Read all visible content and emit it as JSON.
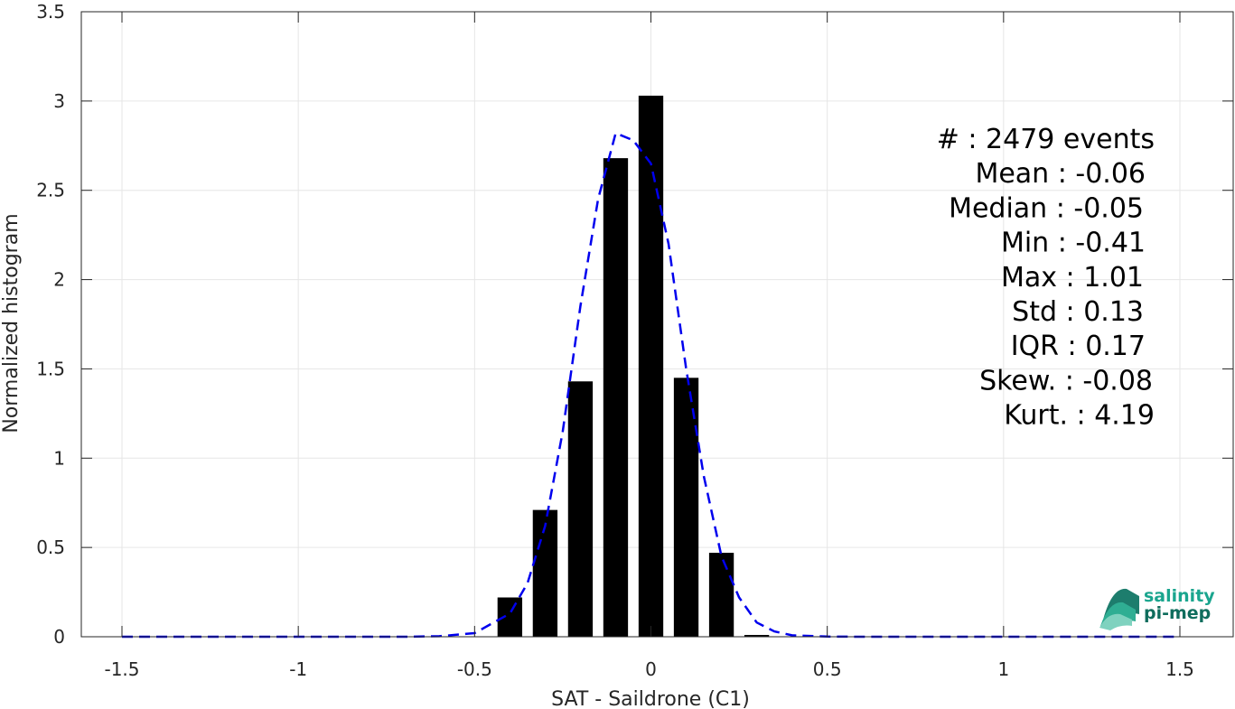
{
  "chart_data": {
    "type": "bar",
    "xlabel": "SAT - Saildrone (C1)",
    "ylabel": "Normalized histogram",
    "xlim": [
      -1.5,
      1.5
    ],
    "ylim": [
      0,
      3.5
    ],
    "xticks": [
      -1.5,
      -1,
      -0.5,
      0,
      0.5,
      1,
      1.5
    ],
    "xtick_labels": [
      "-1.5",
      "-1",
      "-0.5",
      "0",
      "0.5",
      "1",
      "1.5"
    ],
    "yticks": [
      0,
      0.5,
      1,
      1.5,
      2,
      2.5,
      3,
      3.5
    ],
    "ytick_labels": [
      "0",
      "0.5",
      "1",
      "1.5",
      "2",
      "2.5",
      "3",
      "3.5"
    ],
    "grid": true,
    "bar_color": "#000000",
    "bars": {
      "centers": [
        -0.4,
        -0.3,
        -0.2,
        -0.1,
        0.0,
        0.1,
        0.2,
        0.3
      ],
      "values": [
        0.22,
        0.71,
        1.43,
        2.68,
        3.03,
        1.45,
        0.47,
        0.01
      ]
    },
    "fit_line": {
      "style": "dashed",
      "color": "#0000ee",
      "x": [
        -1.5,
        -1.4,
        -1.3,
        -1.2,
        -1.1,
        -1.0,
        -0.9,
        -0.8,
        -0.7,
        -0.6,
        -0.5,
        -0.4,
        -0.35,
        -0.3,
        -0.25,
        -0.2,
        -0.15,
        -0.1,
        -0.05,
        0.0,
        0.05,
        0.1,
        0.15,
        0.2,
        0.25,
        0.3,
        0.35,
        0.4,
        0.5,
        0.6,
        0.7,
        0.8,
        0.9,
        1.0,
        1.1,
        1.2,
        1.3,
        1.4,
        1.5
      ],
      "y": [
        0,
        0,
        0,
        0,
        0,
        0,
        0,
        0,
        0,
        0.003,
        0.02,
        0.13,
        0.3,
        0.62,
        1.15,
        1.85,
        2.45,
        2.82,
        2.78,
        2.65,
        2.2,
        1.5,
        0.9,
        0.45,
        0.22,
        0.08,
        0.03,
        0.008,
        0.001,
        0,
        0,
        0,
        0,
        0,
        0,
        0,
        0,
        0,
        0
      ]
    },
    "stats": [
      "#  : 2479 events",
      "Mean : -0.06",
      "Median : -0.05",
      "Min : -0.41",
      "Max : 1.01",
      "Std : 0.13",
      "IQR : 0.17",
      "Skew. : -0.08",
      "Kurt. : 4.19"
    ]
  },
  "logo": {
    "line1": "salinity",
    "line2": "pi-mep",
    "color": "#1aa58e"
  }
}
